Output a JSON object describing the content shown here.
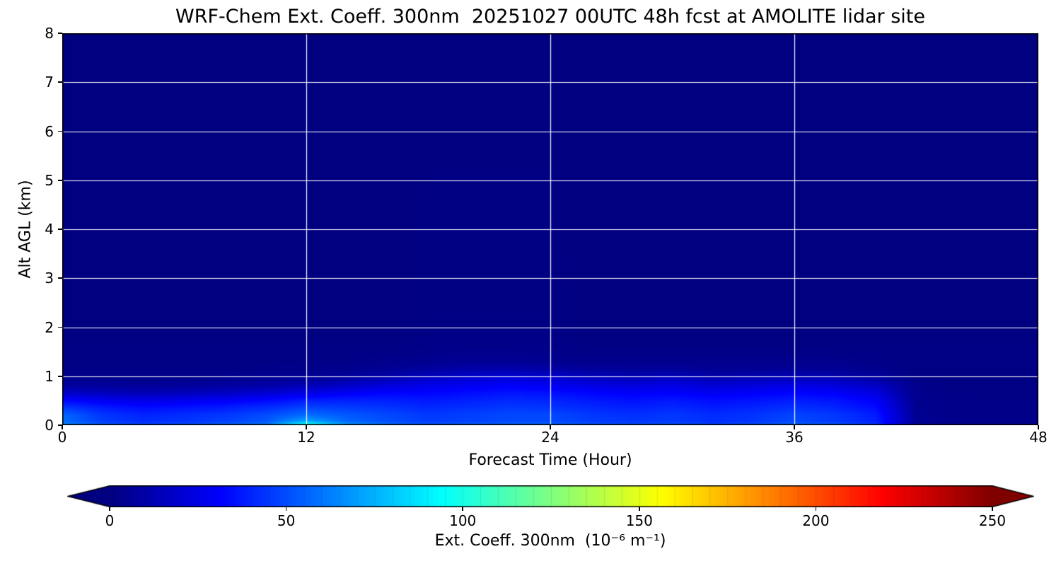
{
  "title": "WRF-Chem Ext. Coeff. 300nm  20251027 00UTC 48h fcst at AMOLITE lidar site",
  "chart_data": {
    "type": "heatmap",
    "title": "WRF-Chem Ext. Coeff. 300nm  20251027 00UTC 48h fcst at AMOLITE lidar site",
    "xlabel": "Forecast Time (Hour)",
    "ylabel": "Alt AGL (km)",
    "xlim": [
      0,
      48
    ],
    "ylim": [
      0,
      8
    ],
    "xticks": [
      0,
      12,
      24,
      36,
      48
    ],
    "yticks": [
      0,
      1,
      2,
      3,
      4,
      5,
      6,
      7,
      8
    ],
    "grid_x": [
      12,
      24,
      36
    ],
    "grid_y": [
      1,
      2,
      3,
      4,
      5,
      6,
      7
    ],
    "grid_color": "#ffffff",
    "background_min_color": "#000080",
    "colorbar": {
      "label": "Ext. Coeff. 300nm  (10⁻⁶ m⁻¹)",
      "ticks": [
        0,
        50,
        100,
        150,
        200,
        250
      ],
      "vmin": 0,
      "vmax": 250,
      "colormap": "jet",
      "extend": "both",
      "under_color": "#000080",
      "over_color": "#800000"
    },
    "x_hours": [
      0,
      2,
      4,
      6,
      8,
      10,
      12,
      14,
      16,
      18,
      20,
      22,
      24,
      26,
      28,
      30,
      32,
      34,
      36,
      38,
      40,
      42,
      44,
      46,
      48
    ],
    "altitudes_km": [
      0,
      0.08,
      0.2,
      0.35,
      0.5,
      0.65,
      0.8,
      0.95,
      1.1,
      1.3,
      1.6,
      2.2,
      8
    ],
    "values": [
      [
        65,
        52,
        47,
        50,
        54,
        60,
        105,
        70,
        58,
        52,
        54,
        56,
        56,
        52,
        50,
        51,
        47,
        50,
        56,
        52,
        44,
        6,
        3,
        3,
        3
      ],
      [
        58,
        46,
        42,
        44,
        47,
        52,
        72,
        56,
        50,
        46,
        47,
        49,
        49,
        46,
        44,
        45,
        42,
        44,
        49,
        45,
        39,
        5,
        3,
        2,
        2
      ],
      [
        56,
        44,
        40,
        42,
        45,
        50,
        58,
        53,
        49,
        45,
        47,
        49,
        49,
        45,
        43,
        45,
        42,
        44,
        48,
        45,
        38,
        5,
        2,
        2,
        2
      ],
      [
        45,
        38,
        34,
        36,
        38,
        42,
        48,
        46,
        44,
        41,
        43,
        45,
        44,
        41,
        39,
        41,
        38,
        40,
        43,
        40,
        34,
        4,
        2,
        2,
        2
      ],
      [
        33,
        28,
        25,
        27,
        29,
        33,
        38,
        39,
        39,
        37,
        39,
        41,
        40,
        37,
        35,
        37,
        34,
        36,
        38,
        36,
        30,
        4,
        2,
        2,
        2
      ],
      [
        18,
        15,
        13,
        15,
        17,
        20,
        25,
        29,
        32,
        32,
        34,
        36,
        35,
        32,
        30,
        31,
        28,
        30,
        32,
        30,
        24,
        3,
        2,
        1,
        1
      ],
      [
        8,
        7,
        6,
        7,
        8,
        10,
        13,
        18,
        23,
        26,
        28,
        30,
        28,
        25,
        23,
        25,
        21,
        23,
        25,
        23,
        17,
        3,
        1,
        1,
        1
      ],
      [
        4,
        3,
        3,
        3,
        4,
        5,
        6,
        9,
        13,
        18,
        21,
        23,
        21,
        17,
        15,
        17,
        13,
        14,
        15,
        14,
        9,
        2,
        1,
        1,
        1
      ],
      [
        2,
        2,
        2,
        2,
        2,
        3,
        3,
        4,
        6,
        9,
        12,
        13,
        11,
        8,
        7,
        8,
        6,
        6,
        7,
        6,
        4,
        1,
        1,
        1,
        1
      ],
      [
        1,
        1,
        1,
        1,
        1,
        1,
        2,
        2,
        3,
        4,
        5,
        5,
        4,
        3,
        3,
        3,
        3,
        3,
        3,
        3,
        2,
        1,
        1,
        1,
        1
      ],
      [
        1,
        1,
        1,
        1,
        1,
        1,
        1,
        1,
        1,
        2,
        2,
        2,
        2,
        1,
        1,
        1,
        1,
        1,
        1,
        1,
        1,
        1,
        1,
        1,
        1
      ],
      [
        0,
        0,
        0,
        0,
        0,
        0,
        0,
        0,
        0,
        1,
        1,
        1,
        1,
        0,
        0,
        0,
        0,
        0,
        0,
        0,
        0,
        0,
        0,
        0,
        0
      ],
      [
        0,
        0,
        0,
        0,
        0,
        0,
        0,
        0,
        0,
        0,
        0,
        0,
        0,
        0,
        0,
        0,
        0,
        0,
        0,
        0,
        0,
        0,
        0,
        0,
        0
      ]
    ]
  }
}
